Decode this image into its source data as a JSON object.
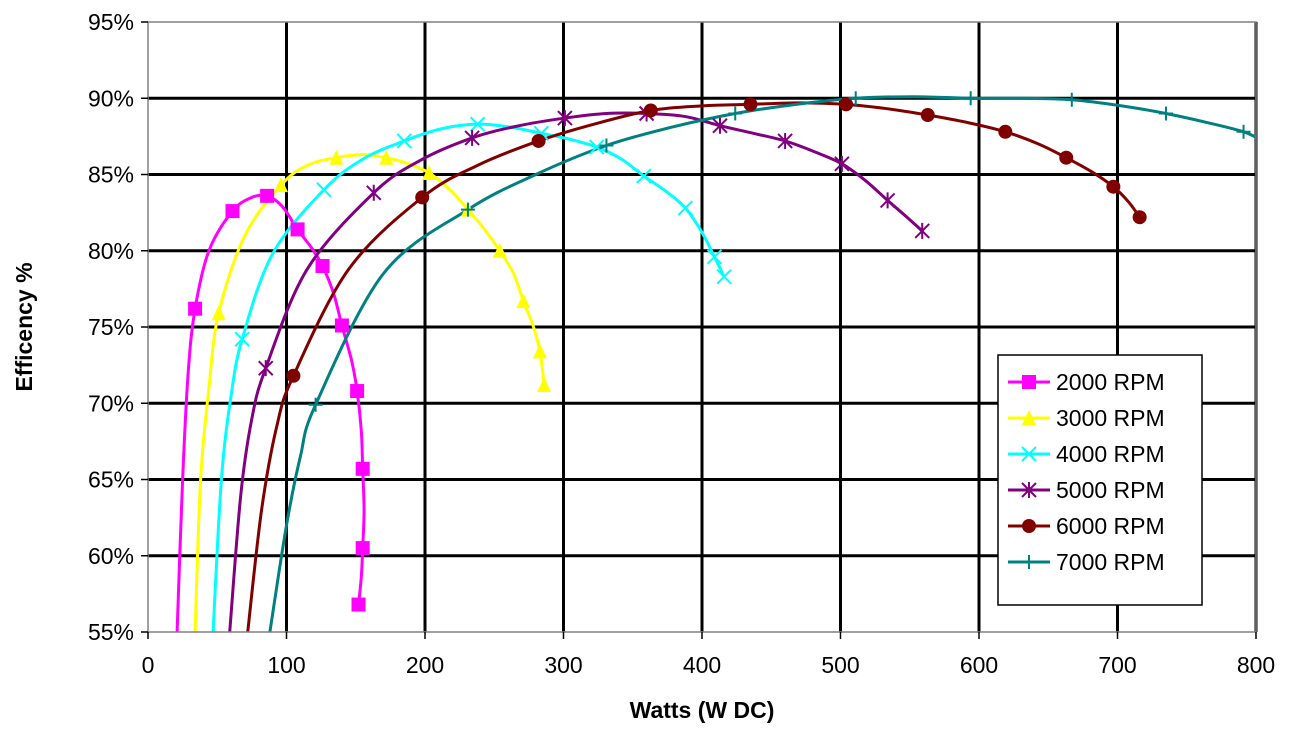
{
  "chart_data": {
    "type": "line",
    "title": "",
    "xlabel": "Watts (W DC)",
    "ylabel": "Efficency %",
    "xlim": [
      0,
      800
    ],
    "ylim": [
      55,
      95
    ],
    "xticks": [
      0,
      100,
      200,
      300,
      400,
      500,
      600,
      700,
      800
    ],
    "yticks": [
      55,
      60,
      65,
      70,
      75,
      80,
      85,
      90,
      95
    ],
    "xtick_labels": [
      "0",
      "100",
      "200",
      "300",
      "400",
      "500",
      "600",
      "700",
      "800"
    ],
    "ytick_labels": [
      "55%",
      "60%",
      "65%",
      "70%",
      "75%",
      "80%",
      "85%",
      "90%",
      "95%"
    ],
    "grid": true,
    "legend": {
      "position": "right"
    },
    "series": [
      {
        "name": "2000 RPM",
        "color": "#FF00FF",
        "marker": "square",
        "points": [
          [
            34,
            76.2
          ],
          [
            61,
            82.6
          ],
          [
            86,
            83.6
          ],
          [
            108,
            81.4
          ],
          [
            126,
            79.0
          ],
          [
            140,
            75.1
          ],
          [
            151,
            70.8
          ],
          [
            155,
            65.7
          ],
          [
            155,
            60.5
          ],
          [
            152,
            56.8
          ]
        ],
        "curve": [
          [
            21,
            55
          ],
          [
            25,
            65
          ],
          [
            29,
            72
          ],
          [
            34,
            76.2
          ],
          [
            44,
            80
          ],
          [
            61,
            82.6
          ],
          [
            75,
            83.5
          ],
          [
            86,
            83.6
          ],
          [
            97,
            82.9
          ],
          [
            108,
            81.4
          ],
          [
            118,
            80.2
          ],
          [
            126,
            79.0
          ],
          [
            134,
            77.2
          ],
          [
            140,
            75.1
          ],
          [
            147,
            72.8
          ],
          [
            151,
            70.8
          ],
          [
            154,
            68.2
          ],
          [
            155,
            65.7
          ],
          [
            156,
            63
          ],
          [
            155,
            60.5
          ],
          [
            154,
            58.6
          ],
          [
            152,
            56.8
          ]
        ]
      },
      {
        "name": "3000 RPM",
        "color": "#FFFF00",
        "marker": "triangle",
        "points": [
          [
            51,
            75.9
          ],
          [
            96,
            84.3
          ],
          [
            136,
            86.1
          ],
          [
            172,
            86.1
          ],
          [
            203,
            85.1
          ],
          [
            231,
            82.7
          ],
          [
            254,
            80.0
          ],
          [
            271,
            76.7
          ],
          [
            283,
            73.4
          ],
          [
            286,
            71.2
          ]
        ],
        "curve": [
          [
            34,
            55
          ],
          [
            38,
            65
          ],
          [
            44,
            71
          ],
          [
            51,
            75.9
          ],
          [
            70,
            81
          ],
          [
            96,
            84.3
          ],
          [
            115,
            85.6
          ],
          [
            136,
            86.1
          ],
          [
            154,
            86.3
          ],
          [
            172,
            86.1
          ],
          [
            188,
            85.7
          ],
          [
            203,
            85.1
          ],
          [
            218,
            84.0
          ],
          [
            231,
            82.7
          ],
          [
            243,
            81.4
          ],
          [
            254,
            80.0
          ],
          [
            264,
            78.5
          ],
          [
            271,
            76.7
          ],
          [
            278,
            75.1
          ],
          [
            283,
            73.4
          ],
          [
            286,
            71.2
          ]
        ]
      },
      {
        "name": "4000 RPM",
        "color": "#00FFFF",
        "marker": "x",
        "points": [
          [
            68,
            74.2
          ],
          [
            127,
            84.0
          ],
          [
            185,
            87.2
          ],
          [
            238,
            88.3
          ],
          [
            284,
            87.7
          ],
          [
            324,
            86.8
          ],
          [
            358,
            84.9
          ],
          [
            388,
            82.8
          ],
          [
            409,
            79.6
          ],
          [
            416,
            78.3
          ]
        ],
        "curve": [
          [
            47,
            55
          ],
          [
            53,
            65
          ],
          [
            60,
            70.5
          ],
          [
            68,
            74.2
          ],
          [
            90,
            79.8
          ],
          [
            127,
            84.0
          ],
          [
            155,
            86.0
          ],
          [
            185,
            87.2
          ],
          [
            212,
            88.0
          ],
          [
            238,
            88.3
          ],
          [
            262,
            88.1
          ],
          [
            284,
            87.7
          ],
          [
            305,
            87.3
          ],
          [
            324,
            86.8
          ],
          [
            342,
            86.0
          ],
          [
            358,
            84.9
          ],
          [
            374,
            83.9
          ],
          [
            388,
            82.8
          ],
          [
            400,
            81.2
          ],
          [
            409,
            79.6
          ],
          [
            416,
            78.3
          ]
        ]
      },
      {
        "name": "5000 RPM",
        "color": "#800080",
        "marker": "star",
        "points": [
          [
            85,
            72.3
          ],
          [
            163,
            83.8
          ],
          [
            234,
            87.4
          ],
          [
            301,
            88.7
          ],
          [
            360,
            89.0
          ],
          [
            413,
            88.2
          ],
          [
            460,
            87.2
          ],
          [
            501,
            85.7
          ],
          [
            534,
            83.3
          ],
          [
            559,
            81.3
          ]
        ],
        "curve": [
          [
            59,
            55
          ],
          [
            67,
            64
          ],
          [
            75,
            69
          ],
          [
            85,
            72.3
          ],
          [
            115,
            78.8
          ],
          [
            163,
            83.8
          ],
          [
            196,
            85.9
          ],
          [
            234,
            87.4
          ],
          [
            268,
            88.2
          ],
          [
            301,
            88.7
          ],
          [
            331,
            89.0
          ],
          [
            360,
            89.0
          ],
          [
            388,
            88.8
          ],
          [
            413,
            88.2
          ],
          [
            437,
            87.7
          ],
          [
            460,
            87.2
          ],
          [
            481,
            86.5
          ],
          [
            501,
            85.7
          ],
          [
            518,
            84.6
          ],
          [
            534,
            83.3
          ],
          [
            548,
            82.2
          ],
          [
            559,
            81.3
          ]
        ]
      },
      {
        "name": "6000 RPM",
        "color": "#800000",
        "marker": "circle",
        "points": [
          [
            105,
            71.8
          ],
          [
            198,
            83.5
          ],
          [
            282,
            87.2
          ],
          [
            363,
            89.2
          ],
          [
            435,
            89.6
          ],
          [
            504,
            89.6
          ],
          [
            563,
            88.9
          ],
          [
            619,
            87.8
          ],
          [
            663,
            86.1
          ],
          [
            697,
            84.2
          ],
          [
            716,
            82.2
          ]
        ],
        "curve": [
          [
            72,
            55
          ],
          [
            82,
            63
          ],
          [
            93,
            68.5
          ],
          [
            105,
            71.8
          ],
          [
            145,
            78.8
          ],
          [
            198,
            83.5
          ],
          [
            238,
            85.6
          ],
          [
            282,
            87.2
          ],
          [
            322,
            88.3
          ],
          [
            363,
            89.2
          ],
          [
            400,
            89.5
          ],
          [
            435,
            89.6
          ],
          [
            470,
            89.7
          ],
          [
            504,
            89.6
          ],
          [
            535,
            89.3
          ],
          [
            563,
            88.9
          ],
          [
            592,
            88.4
          ],
          [
            619,
            87.8
          ],
          [
            643,
            87.0
          ],
          [
            663,
            86.1
          ],
          [
            681,
            85.2
          ],
          [
            697,
            84.2
          ],
          [
            708,
            83.2
          ],
          [
            716,
            82.2
          ]
        ]
      },
      {
        "name": "7000 RPM",
        "color": "#008080",
        "marker": "plus",
        "points": [
          [
            121,
            69.9
          ],
          [
            231,
            82.7
          ],
          [
            331,
            86.9
          ],
          [
            424,
            89.0
          ],
          [
            511,
            90.0
          ],
          [
            594,
            90.0
          ],
          [
            667,
            89.9
          ],
          [
            735,
            89.0
          ],
          [
            791,
            87.8
          ]
        ],
        "curve": [
          [
            88,
            55
          ],
          [
            100,
            62
          ],
          [
            110,
            66.5
          ],
          [
            121,
            69.9
          ],
          [
            170,
            78.5
          ],
          [
            231,
            82.7
          ],
          [
            280,
            85.0
          ],
          [
            331,
            86.9
          ],
          [
            378,
            88.1
          ],
          [
            424,
            89.0
          ],
          [
            468,
            89.6
          ],
          [
            511,
            90.0
          ],
          [
            553,
            90.1
          ],
          [
            594,
            90.0
          ],
          [
            631,
            90.0
          ],
          [
            667,
            89.9
          ],
          [
            703,
            89.5
          ],
          [
            735,
            89.0
          ],
          [
            765,
            88.4
          ],
          [
            791,
            87.8
          ],
          [
            805,
            87.2
          ]
        ]
      }
    ]
  }
}
